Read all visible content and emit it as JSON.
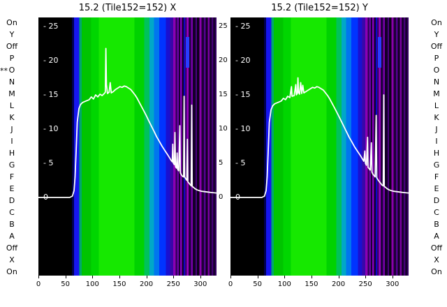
{
  "figure": {
    "left_axis_letters": [
      "On",
      "Y",
      "Off",
      "P",
      "O",
      "N",
      "M",
      "L",
      "K",
      "J",
      "I",
      "H",
      "G",
      "F",
      "E",
      "D",
      "C",
      "B",
      "A",
      "Off",
      "X",
      "On"
    ],
    "right_axis_letters": [
      "On",
      "Y",
      "Off",
      "P",
      "O",
      "N",
      "M",
      "L",
      "K",
      "J",
      "I",
      "H",
      "G",
      "F",
      "E",
      "D",
      "C",
      "B",
      "A",
      "Off",
      "X",
      "On"
    ],
    "left_marker": {
      "text": "**",
      "row_index": 4,
      "row_label": "O"
    }
  },
  "chart_data": {
    "type": "heatmap",
    "title": "15.2 (Tile152=152)",
    "x_range": [
      0,
      330
    ],
    "y_range": [
      -11.4,
      26.3
    ],
    "x_tick_values": [
      0,
      50,
      100,
      150,
      200,
      250,
      300
    ],
    "x_tick_labels": [
      "0",
      "50",
      "100",
      "150",
      "200",
      "250",
      "300"
    ],
    "y_tick_values": [
      25,
      20,
      15,
      10,
      5,
      0
    ],
    "y_tick_labels_inner": [
      "- 25",
      "- 20",
      "- 15",
      "- 10",
      "- 5",
      "0"
    ],
    "between_tick_labels": [
      "25",
      "20",
      "15",
      "10",
      "5",
      "0"
    ],
    "line_color": "#ffffff",
    "grid": false,
    "legend": "none",
    "heatmap_bands": [
      [
        0,
        62,
        "#000000"
      ],
      [
        62,
        66,
        "#000050"
      ],
      [
        66,
        76,
        "#1616f0"
      ],
      [
        76,
        80,
        "#00a86c"
      ],
      [
        80,
        98,
        "#00c400"
      ],
      [
        98,
        112,
        "#00d600"
      ],
      [
        112,
        178,
        "#16e800"
      ],
      [
        178,
        196,
        "#00d200"
      ],
      [
        196,
        206,
        "#00c25a"
      ],
      [
        206,
        214,
        "#00a8c8"
      ],
      [
        214,
        224,
        "#0076ee"
      ],
      [
        224,
        236,
        "#0034ff"
      ],
      [
        236,
        244,
        "#1a10d0"
      ],
      [
        244,
        250,
        "#3808a8"
      ],
      [
        250,
        254,
        "#8a00b4"
      ],
      [
        254,
        257,
        "#2a0050"
      ],
      [
        257,
        260,
        "#6a00a8"
      ],
      [
        260,
        263,
        "#1a0033"
      ],
      [
        263,
        266,
        "#8800bb"
      ],
      [
        266,
        269,
        "#12002a"
      ],
      [
        269,
        271,
        "#0008e8"
      ],
      [
        271,
        275,
        "#3a0070"
      ],
      [
        275,
        278,
        "#a000c0"
      ],
      [
        278,
        283,
        "#200040"
      ],
      [
        283,
        286,
        "#7700aa"
      ],
      [
        286,
        291,
        "#140028"
      ],
      [
        291,
        294,
        "#4a0080"
      ],
      [
        294,
        298,
        "#0d001a"
      ],
      [
        298,
        302,
        "#8a00aa"
      ],
      [
        302,
        307,
        "#1e0038"
      ],
      [
        307,
        310,
        "#550090"
      ],
      [
        310,
        314,
        "#120022"
      ],
      [
        314,
        317,
        "#7a00a0"
      ],
      [
        317,
        321,
        "#1a0030"
      ],
      [
        321,
        324,
        "#440077"
      ],
      [
        324,
        327,
        "#0e001c"
      ],
      [
        327,
        330,
        "#330060"
      ]
    ],
    "notch": {
      "x0": 273,
      "x1": 279,
      "y0": 19,
      "y1": 23.5,
      "color": "#2a3cff"
    },
    "plots": [
      {
        "title": "15.2 (Tile152=152) X",
        "line": [
          [
            0,
            0
          ],
          [
            58,
            0
          ],
          [
            63,
            0.2
          ],
          [
            66,
            1
          ],
          [
            68,
            3
          ],
          [
            70,
            7
          ],
          [
            72,
            11
          ],
          [
            75,
            13
          ],
          [
            78,
            13.6
          ],
          [
            82,
            13.9
          ],
          [
            88,
            14.1
          ],
          [
            94,
            14.3
          ],
          [
            98,
            14.7
          ],
          [
            102,
            14.4
          ],
          [
            106,
            15
          ],
          [
            110,
            14.7
          ],
          [
            114,
            15.1
          ],
          [
            118,
            14.9
          ],
          [
            122,
            15.2
          ],
          [
            124,
            15.4
          ],
          [
            125,
            21.8
          ],
          [
            126,
            16.5
          ],
          [
            128,
            15.2
          ],
          [
            131,
            15.4
          ],
          [
            133,
            16.8
          ],
          [
            135,
            15.3
          ],
          [
            139,
            15.5
          ],
          [
            143,
            15.8
          ],
          [
            147,
            16
          ],
          [
            151,
            16.2
          ],
          [
            155,
            16.1
          ],
          [
            159,
            16.3
          ],
          [
            163,
            16.2
          ],
          [
            167,
            16
          ],
          [
            171,
            15.8
          ],
          [
            175,
            15.4
          ],
          [
            179,
            15
          ],
          [
            183,
            14.5
          ],
          [
            187,
            13.9
          ],
          [
            191,
            13.3
          ],
          [
            195,
            12.7
          ],
          [
            199,
            12.1
          ],
          [
            204,
            11.3
          ],
          [
            209,
            10.5
          ],
          [
            214,
            9.7
          ],
          [
            219,
            8.9
          ],
          [
            224,
            8.2
          ],
          [
            229,
            7.5
          ],
          [
            234,
            6.9
          ],
          [
            239,
            6.3
          ],
          [
            243,
            5.8
          ],
          [
            246,
            5.4
          ],
          [
            248,
            5.2
          ],
          [
            249,
            7.8
          ],
          [
            250,
            5
          ],
          [
            252,
            4.8
          ],
          [
            253,
            9.5
          ],
          [
            254,
            4.5
          ],
          [
            256,
            4.3
          ],
          [
            257,
            6.5
          ],
          [
            258,
            4.1
          ],
          [
            260,
            3.9
          ],
          [
            262,
            10.5
          ],
          [
            263,
            3.6
          ],
          [
            265,
            3.3
          ],
          [
            267,
            3.1
          ],
          [
            269,
            3
          ],
          [
            270,
            14.8
          ],
          [
            271,
            3
          ],
          [
            273,
            2.7
          ],
          [
            275,
            2.5
          ],
          [
            276,
            8.5
          ],
          [
            277,
            2.3
          ],
          [
            279,
            2.1
          ],
          [
            281,
            1.9
          ],
          [
            283,
            1.7
          ],
          [
            284,
            13.5
          ],
          [
            285,
            1.6
          ],
          [
            287,
            1.5
          ],
          [
            290,
            1.3
          ],
          [
            294,
            1.1
          ],
          [
            298,
            1
          ],
          [
            303,
            0.9
          ],
          [
            308,
            0.85
          ],
          [
            313,
            0.8
          ],
          [
            318,
            0.75
          ],
          [
            323,
            0.7
          ],
          [
            330,
            0.65
          ]
        ]
      },
      {
        "title": "15.2 (Tile152=152) Y",
        "line": [
          [
            0,
            0
          ],
          [
            58,
            0
          ],
          [
            63,
            0.2
          ],
          [
            66,
            1
          ],
          [
            68,
            3
          ],
          [
            70,
            7
          ],
          [
            72,
            11
          ],
          [
            75,
            12.8
          ],
          [
            78,
            13.4
          ],
          [
            82,
            13.7
          ],
          [
            88,
            13.9
          ],
          [
            94,
            14.1
          ],
          [
            98,
            14.5
          ],
          [
            102,
            14.3
          ],
          [
            106,
            14.8
          ],
          [
            110,
            14.6
          ],
          [
            113,
            16.2
          ],
          [
            114,
            14.8
          ],
          [
            118,
            14.9
          ],
          [
            121,
            16.5
          ],
          [
            122,
            15
          ],
          [
            124,
            15.2
          ],
          [
            125,
            17.5
          ],
          [
            126,
            15.4
          ],
          [
            128,
            15.1
          ],
          [
            130,
            16.8
          ],
          [
            132,
            15.2
          ],
          [
            134,
            16.4
          ],
          [
            136,
            15.3
          ],
          [
            140,
            15.5
          ],
          [
            144,
            15.7
          ],
          [
            148,
            15.9
          ],
          [
            152,
            16.1
          ],
          [
            156,
            16
          ],
          [
            160,
            16.2
          ],
          [
            164,
            16.1
          ],
          [
            168,
            15.9
          ],
          [
            172,
            15.7
          ],
          [
            176,
            15.3
          ],
          [
            180,
            14.9
          ],
          [
            184,
            14.4
          ],
          [
            188,
            13.8
          ],
          [
            192,
            13.2
          ],
          [
            196,
            12.6
          ],
          [
            200,
            12
          ],
          [
            205,
            11.2
          ],
          [
            210,
            10.4
          ],
          [
            215,
            9.6
          ],
          [
            220,
            8.8
          ],
          [
            225,
            8.1
          ],
          [
            230,
            7.4
          ],
          [
            235,
            6.8
          ],
          [
            240,
            6.2
          ],
          [
            244,
            5.7
          ],
          [
            247,
            5.3
          ],
          [
            249,
            6.8
          ],
          [
            250,
            5
          ],
          [
            252,
            4.7
          ],
          [
            254,
            8.8
          ],
          [
            255,
            4.4
          ],
          [
            257,
            4.2
          ],
          [
            259,
            4
          ],
          [
            261,
            8
          ],
          [
            262,
            3.7
          ],
          [
            264,
            3.4
          ],
          [
            266,
            3.2
          ],
          [
            268,
            3
          ],
          [
            270,
            12
          ],
          [
            271,
            2.9
          ],
          [
            273,
            2.6
          ],
          [
            275,
            2.4
          ],
          [
            277,
            2.2
          ],
          [
            279,
            2
          ],
          [
            281,
            1.8
          ],
          [
            283,
            1.7
          ],
          [
            284,
            15
          ],
          [
            285,
            1.6
          ],
          [
            287,
            1.5
          ],
          [
            290,
            1.3
          ],
          [
            294,
            1.1
          ],
          [
            298,
            1
          ],
          [
            303,
            0.9
          ],
          [
            308,
            0.85
          ],
          [
            313,
            0.8
          ],
          [
            318,
            0.75
          ],
          [
            323,
            0.7
          ],
          [
            330,
            0.65
          ]
        ]
      }
    ]
  }
}
